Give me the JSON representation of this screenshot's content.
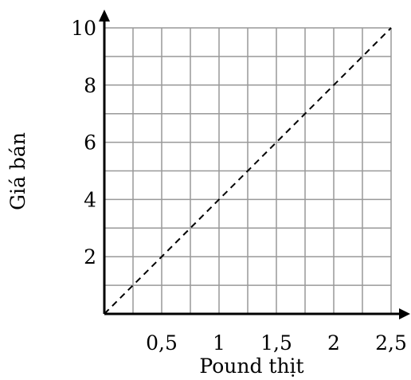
{
  "chart_data": {
    "type": "line",
    "title": "",
    "xlabel": "Pound thịt",
    "ylabel": "Giá bán",
    "xlim": [
      0,
      2.5
    ],
    "ylim": [
      0,
      10
    ],
    "grid": true,
    "grid_step": {
      "x": 0.25,
      "y": 1
    },
    "x_ticks": [
      {
        "value": 0.5,
        "label": "0,5"
      },
      {
        "value": 1,
        "label": "1"
      },
      {
        "value": 1.5,
        "label": "1,5"
      },
      {
        "value": 2,
        "label": "2"
      },
      {
        "value": 2.5,
        "label": "2,5"
      }
    ],
    "y_ticks": [
      {
        "value": 2,
        "label": "2"
      },
      {
        "value": 4,
        "label": "4"
      },
      {
        "value": 6,
        "label": "6"
      },
      {
        "value": 8,
        "label": "8"
      },
      {
        "value": 10,
        "label": "10"
      }
    ],
    "series": [
      {
        "style": "dashed",
        "color": "#000000",
        "x": [
          0,
          2.5
        ],
        "y": [
          0,
          10
        ]
      }
    ]
  },
  "colors": {
    "grid": "#999999",
    "axis": "#000000",
    "line": "#000000"
  }
}
